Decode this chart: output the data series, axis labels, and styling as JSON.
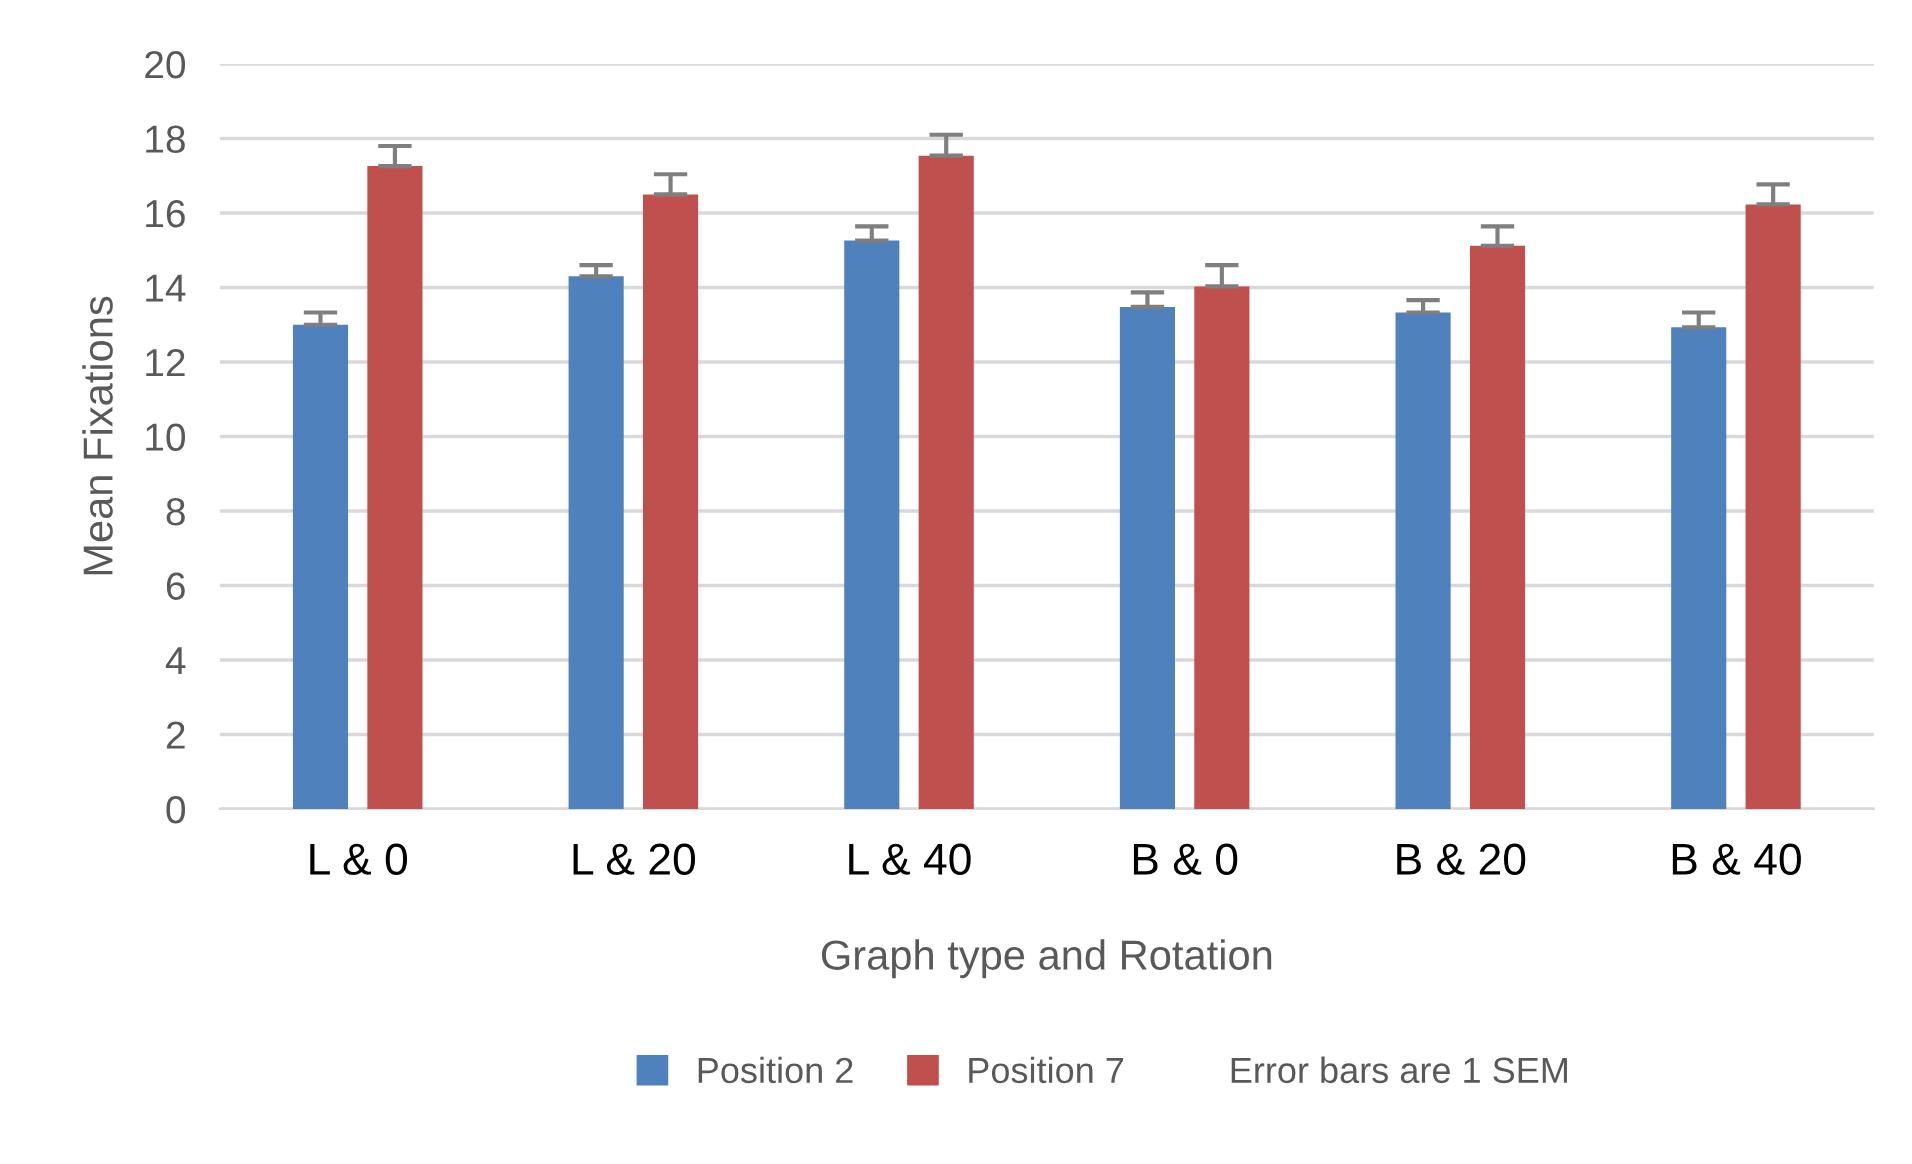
{
  "chart_data": {
    "type": "bar",
    "xlabel": "Graph type and Rotation",
    "ylabel": "Mean Fixations",
    "categories": [
      "L & 0",
      "L & 20",
      "L & 40",
      "B & 0",
      "B & 20",
      "B & 40"
    ],
    "series": [
      {
        "name": "Position 2",
        "color": "#4f81bd",
        "values": [
          13.0,
          14.3,
          15.26,
          13.48,
          13.33,
          12.93
        ],
        "errors": [
          [
            13.0,
            13.33
          ],
          [
            14.3,
            14.6
          ],
          [
            15.26,
            15.64
          ],
          [
            13.48,
            13.87
          ],
          [
            13.33,
            13.66
          ],
          [
            12.93,
            13.33
          ]
        ]
      },
      {
        "name": "Position 7",
        "color": "#c0504d",
        "values": [
          17.26,
          16.5,
          17.54,
          14.03,
          15.12,
          16.23
        ],
        "errors": [
          [
            17.26,
            17.8
          ],
          [
            16.5,
            17.04
          ],
          [
            17.54,
            18.1
          ],
          [
            14.03,
            14.6
          ],
          [
            15.12,
            15.64
          ],
          [
            16.23,
            16.77
          ]
        ]
      }
    ],
    "ylim": [
      0,
      20
    ],
    "yticks": [
      0,
      2,
      4,
      6,
      8,
      10,
      12,
      14,
      16,
      18,
      20
    ],
    "grid": "y",
    "legend": "bottom",
    "annotations": [
      "Error bars are 1 SEM"
    ]
  }
}
